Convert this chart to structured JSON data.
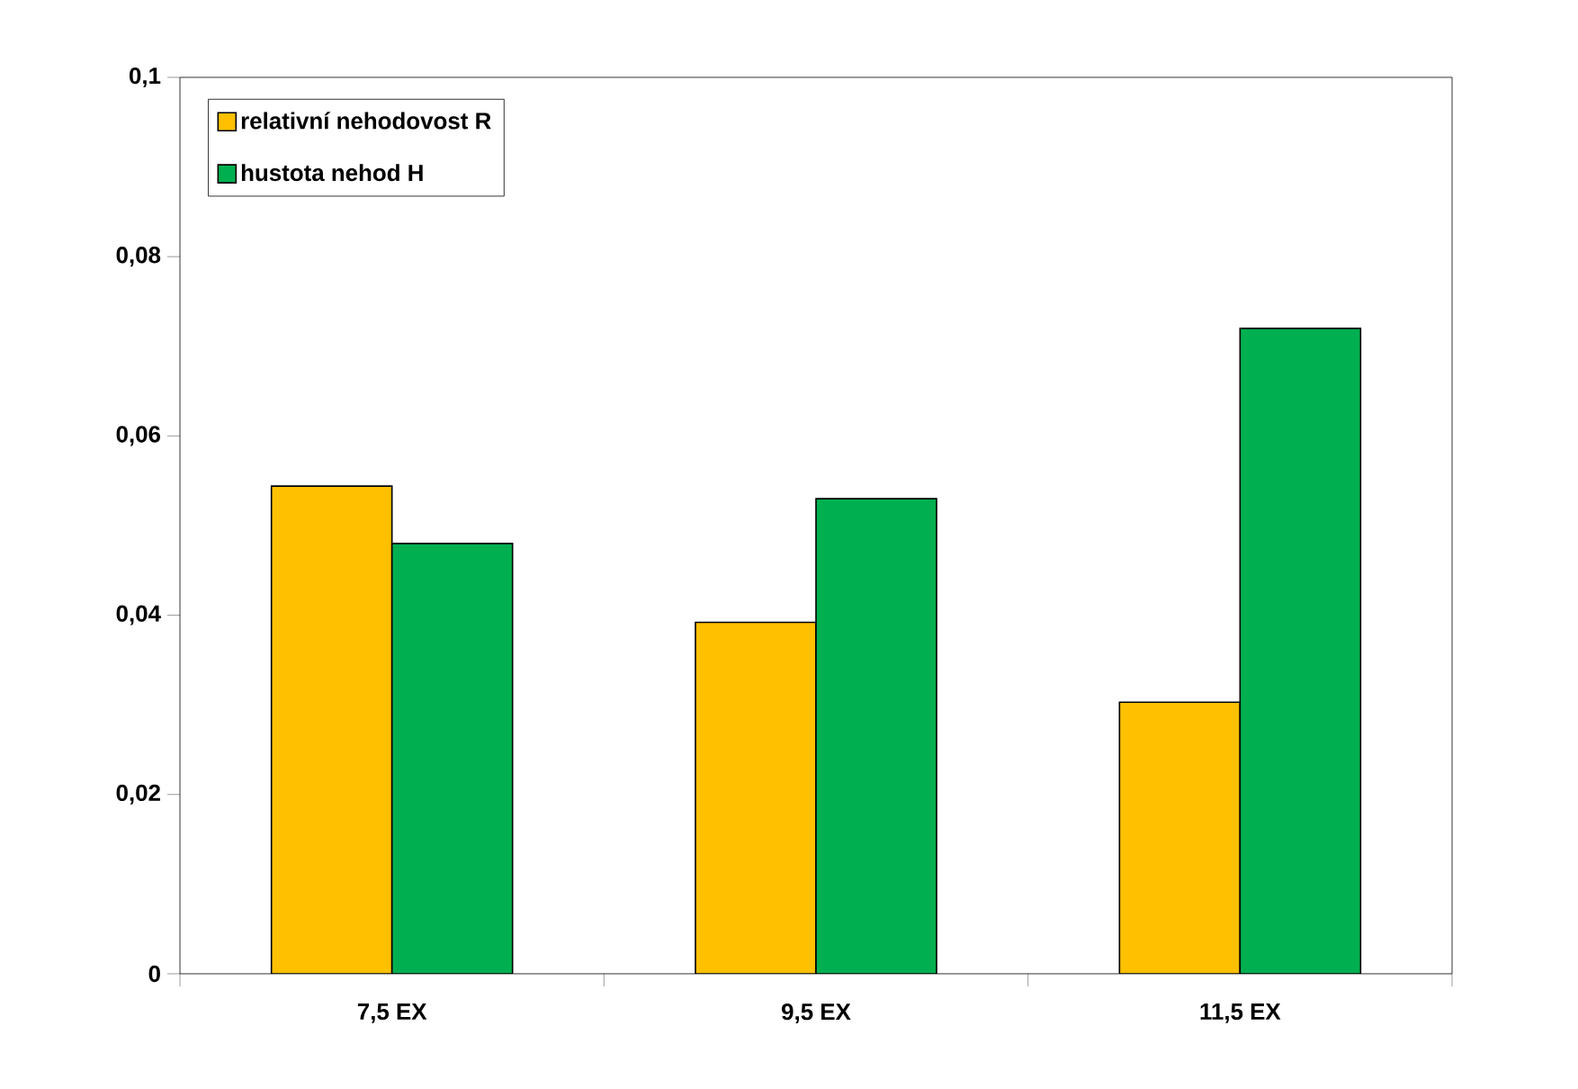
{
  "chart_data": {
    "type": "bar",
    "categories": [
      "7,5 EX",
      "9,5 EX",
      "11,5 EX"
    ],
    "series": [
      {
        "name": "relativní nehodovost R",
        "color": "#ffc000",
        "values": [
          0.0544,
          0.0392,
          0.0303
        ]
      },
      {
        "name": "hustota nehod H",
        "color": "#00b050",
        "values": [
          0.048,
          0.053,
          0.072
        ]
      }
    ],
    "ylim": [
      0,
      0.1
    ],
    "yticks": [
      0,
      {
        "value": 0.02,
        "label": "0,02"
      },
      {
        "value": 0.04,
        "label": "0,04"
      },
      {
        "value": 0.06,
        "label": "0,06"
      },
      {
        "value": 0.08,
        "label": "0,08"
      },
      {
        "value": 0.1,
        "label": "0,1"
      }
    ],
    "grid": false,
    "legend": "top left"
  }
}
